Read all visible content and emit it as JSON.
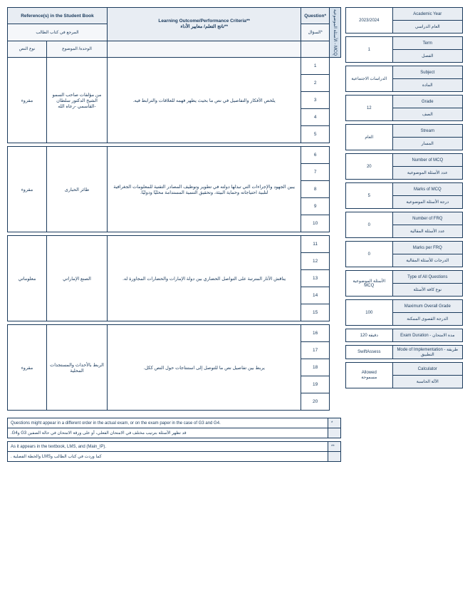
{
  "mainHeader": {
    "reference": "Reference(s) in the Student Book",
    "referenceAr": "المرجع في كتاب الطالب",
    "outcome": "Learning Outcome/Performance Criteria**",
    "outcomeAr": "ناتج التعلم/ معايير الأداء**",
    "question": "Question*",
    "questionAr": "السؤال*",
    "textType": "نوع النص",
    "topic": "الوحدة/ الموضوع"
  },
  "sideLabel": "الأسئلة الموضوعية - MCQ",
  "rows": [
    {
      "textType": "مقروء",
      "topic": "من مؤلفات صاحب السمو الشيخ الدكتور سلطان القاسمي -رعاه الله-",
      "outcome": "يلخص الأفكار والتفاصيل في نص ما بحيث يظهر فهمه للعلاقات والترابط فيه.",
      "qs": [
        "1",
        "2",
        "3",
        "4",
        "5"
      ]
    },
    {
      "textType": "مقروء",
      "topic": "طائر الحبارى",
      "outcome": "يبين الجهود والإجراءات التي تبذلها دولته في تطوير وتوظيف المصادر التقنية للمعلومات الجغرافية لتلبية احتياجاته وحماية البيئة، وتحقيق التنمية المستدامة محليًا ودوليًا.",
      "qs": [
        "6",
        "7",
        "8",
        "9",
        "10"
      ]
    },
    {
      "textType": "معلوماتي",
      "topic": "الصنع الإماراتي",
      "outcome": "يناقش الآثار المترتبة على التواصل الحضاري بين دولة الإمارات والحضارات المجاورة له.",
      "qs": [
        "11",
        "12",
        "13",
        "14",
        "15"
      ]
    },
    {
      "textType": "مقروء",
      "topic": "الربط بالأحداث والمستجدات المحلية",
      "outcome": "يربط بين تفاصيل نص ما للتوصل إلى استنتاجات حول النص ككل.",
      "qs": [
        "16",
        "17",
        "18",
        "19",
        "20"
      ]
    }
  ],
  "footers": [
    {
      "en": "Questions might appear in a different order in the actual exam, or on the exam paper in the case of G3 and G4.",
      "mark": "*"
    },
    {
      "ar": "قد تظهر الأسئلة بترتيب مختلف في الامتحان الفعلي، أو على ورقة الامتحان في حالة الصفين G3 وG4.",
      "mark": ""
    },
    {
      "en": "As it appears in the textbook, LMS, and (Main_IP).",
      "mark": "**"
    },
    {
      "ar": "كما وردت في كتاب الطالب وLMS والخطة الفصلية .",
      "mark": ""
    }
  ],
  "info": [
    {
      "label": "Academic Year",
      "labelAr": "العام الدراسي",
      "value": "2023/2024"
    },
    {
      "label": "Term",
      "labelAr": "الفصل",
      "value": "1"
    },
    {
      "label": "Subject",
      "labelAr": "المادة",
      "value": "الدراسات الاجتماعية"
    },
    {
      "label": "Grade",
      "labelAr": "الصف",
      "value": "12"
    },
    {
      "label": "Stream",
      "labelAr": "المسار",
      "value": "العام"
    },
    {
      "label": "Number of MCQ",
      "labelAr": "عدد الأسئلة الموضوعية",
      "value": "20"
    },
    {
      "label": "Marks of MCQ",
      "labelAr": "درجة الأسئلة الموضوعية",
      "value": "5"
    },
    {
      "label": "Number of FRQ",
      "labelAr": "عدد الأسئلة المقالية",
      "value": "0"
    },
    {
      "label": "Marks per FRQ",
      "labelAr": "الدرجات للأسئلة المقالية",
      "value": "0"
    },
    {
      "label": "Type of All Questions",
      "labelAr": "نوع كافة الأسئلة",
      "value": "الأسئلة الموضوعية MCQ"
    },
    {
      "label": "Maximum Overall Grade",
      "labelAr": "الدرجة القصوى الممكنة",
      "value": "100"
    },
    {
      "label": "Exam Duration - مدة الامتحان",
      "labelAr": "",
      "value": "120 دقيقة"
    },
    {
      "label": "Mode of Implementation - طريقة التطبيق",
      "labelAr": "",
      "value": "SwiftAssess"
    },
    {
      "label": "Calculator",
      "labelAr": "الآلة الحاسبة",
      "value": "Allowed",
      "valueAr": "مسموحة"
    }
  ]
}
